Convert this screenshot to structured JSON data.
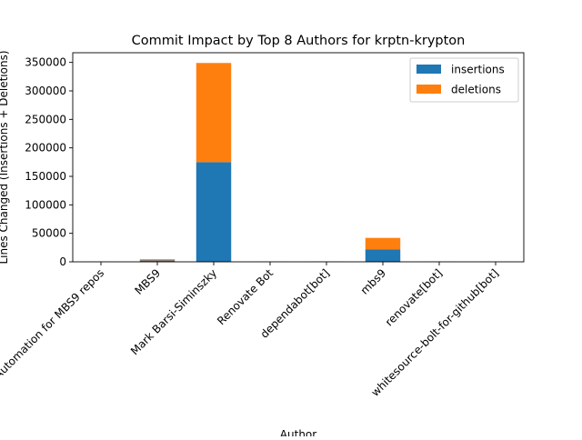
{
  "chart_data": {
    "type": "bar",
    "stacked": true,
    "title": "Commit Impact by Top 8 Authors for krptn-krypton",
    "xlabel": "Author",
    "ylabel": "Lines Changed (Insertions + Deletions)",
    "categories": [
      "Automation for MBS9 repos",
      "MBS9",
      "Mark Barsi-Siminszky",
      "Renovate Bot",
      "dependabot[bot]",
      "mbs9",
      "renovate[bot]",
      "whitesource-bolt-for-github[bot]"
    ],
    "series": [
      {
        "name": "insertions",
        "color": "#1f77b4",
        "values": [
          150,
          2500,
          175000,
          120,
          300,
          22000,
          250,
          80
        ]
      },
      {
        "name": "deletions",
        "color": "#ff7f0e",
        "values": [
          120,
          2000,
          174000,
          100,
          250,
          20000,
          200,
          60
        ]
      }
    ],
    "ylim": [
      0,
      367000
    ],
    "yticks": [
      0,
      50000,
      100000,
      150000,
      200000,
      250000,
      300000,
      350000
    ],
    "ytick_labels": [
      "0",
      "50000",
      "100000",
      "150000",
      "200000",
      "250000",
      "300000",
      "350000"
    ],
    "legend_position": "top-right",
    "grid": false
  }
}
